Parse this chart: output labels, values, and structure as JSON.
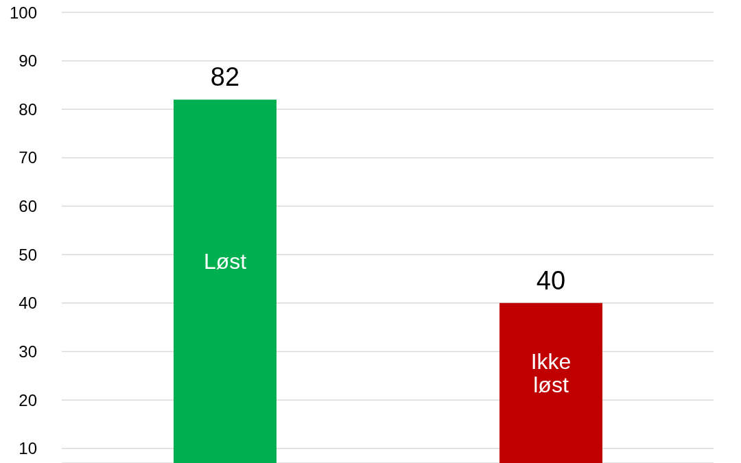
{
  "chart_data": {
    "type": "bar",
    "categories": [
      "Løst",
      "Ikke løst"
    ],
    "values": [
      82,
      40
    ],
    "colors": [
      "#00b050",
      "#c00000"
    ],
    "ylim": [
      7,
      100
    ],
    "yticks": [
      10,
      20,
      30,
      40,
      50,
      60,
      70,
      80,
      90,
      100
    ],
    "grid": "y",
    "data_labels": true,
    "tick_labels": "y"
  }
}
